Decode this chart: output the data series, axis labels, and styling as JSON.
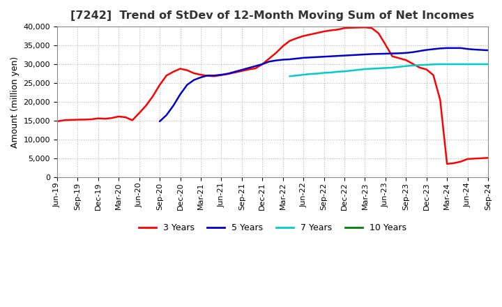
{
  "title": "[7242]  Trend of StDev of 12-Month Moving Sum of Net Incomes",
  "ylabel": "Amount (million yen)",
  "ylim": [
    0,
    40000
  ],
  "yticks": [
    0,
    5000,
    10000,
    15000,
    20000,
    25000,
    30000,
    35000,
    40000
  ],
  "background_color": "#ffffff",
  "plot_bg_color": "#ffffff",
  "grid_color": "#aaaaaa",
  "title_fontsize": 11.5,
  "label_fontsize": 9,
  "tick_fontsize": 8,
  "series": {
    "3 Years": {
      "color": "#ff0000",
      "y": [
        14800,
        15100,
        15200,
        15250,
        15280,
        15350,
        15600,
        15500,
        15700,
        16100,
        15900,
        15100,
        17000,
        19000,
        21500,
        24500,
        27000,
        28000,
        28800,
        28400,
        27600,
        27200,
        26900,
        26800,
        27100,
        27400,
        27800,
        28200,
        28600,
        28900,
        30000,
        31500,
        33000,
        34800,
        36200,
        36900,
        37500,
        37900,
        38300,
        38700,
        39000,
        39200,
        39600,
        39700,
        39750,
        39800,
        39600,
        38200,
        35200,
        32100,
        31600,
        31100,
        30100,
        29100,
        28600,
        27100,
        20500,
        3500,
        3700,
        4100,
        4800,
        4900,
        5000,
        5100
      ]
    },
    "5 Years": {
      "color": "#0000cc",
      "y": [
        null,
        null,
        null,
        null,
        null,
        null,
        null,
        null,
        null,
        null,
        null,
        null,
        null,
        null,
        null,
        14800,
        16500,
        19000,
        22000,
        24500,
        25800,
        26500,
        27000,
        27000,
        27200,
        27500,
        28000,
        28500,
        29000,
        29500,
        30000,
        30700,
        31000,
        31200,
        31300,
        31500,
        31700,
        31800,
        31900,
        32000,
        32100,
        32200,
        32300,
        32400,
        32500,
        32600,
        32700,
        32750,
        32800,
        32850,
        32900,
        33000,
        33200,
        33500,
        33800,
        34000,
        34200,
        34300,
        34300,
        34300,
        34050,
        33900,
        33800,
        33700
      ]
    },
    "7 Years": {
      "color": "#00cccc",
      "y": [
        null,
        null,
        null,
        null,
        null,
        null,
        null,
        null,
        null,
        null,
        null,
        null,
        null,
        null,
        null,
        null,
        null,
        null,
        null,
        null,
        null,
        null,
        null,
        null,
        null,
        null,
        null,
        null,
        null,
        null,
        null,
        null,
        null,
        null,
        26800,
        27000,
        27200,
        27400,
        27500,
        27700,
        27800,
        28000,
        28100,
        28300,
        28500,
        28700,
        28800,
        28900,
        29000,
        29100,
        29300,
        29500,
        29650,
        29750,
        29850,
        29950,
        30000,
        30000,
        30000,
        30000,
        30000,
        30000,
        30000,
        30000
      ]
    },
    "10 Years": {
      "color": "#008000",
      "y": [
        null,
        null,
        null,
        null,
        null,
        null,
        null,
        null,
        null,
        null,
        null,
        null,
        null,
        null,
        null,
        null,
        null,
        null,
        null,
        null,
        null,
        null,
        null,
        null,
        null,
        null,
        null,
        null,
        null,
        null,
        null,
        null,
        null,
        null,
        null,
        null,
        null,
        null,
        null,
        null,
        null,
        null,
        null,
        null,
        null,
        null,
        null,
        null,
        null,
        null,
        null,
        null,
        null,
        null,
        null,
        null,
        null,
        null,
        null,
        null,
        null,
        null,
        null,
        null
      ]
    }
  },
  "xtick_labels": [
    "Jun-19",
    "Sep-19",
    "Dec-19",
    "Mar-20",
    "Jun-20",
    "Sep-20",
    "Dec-20",
    "Mar-21",
    "Jun-21",
    "Sep-21",
    "Dec-21",
    "Mar-22",
    "Jun-22",
    "Sep-22",
    "Dec-22",
    "Mar-23",
    "Jun-23",
    "Sep-23",
    "Dec-23",
    "Mar-24",
    "Jun-24",
    "Sep-24"
  ],
  "legend_labels": [
    "3 Years",
    "5 Years",
    "7 Years",
    "10 Years"
  ],
  "legend_colors": [
    "#ff0000",
    "#0000cc",
    "#00cccc",
    "#008000"
  ]
}
